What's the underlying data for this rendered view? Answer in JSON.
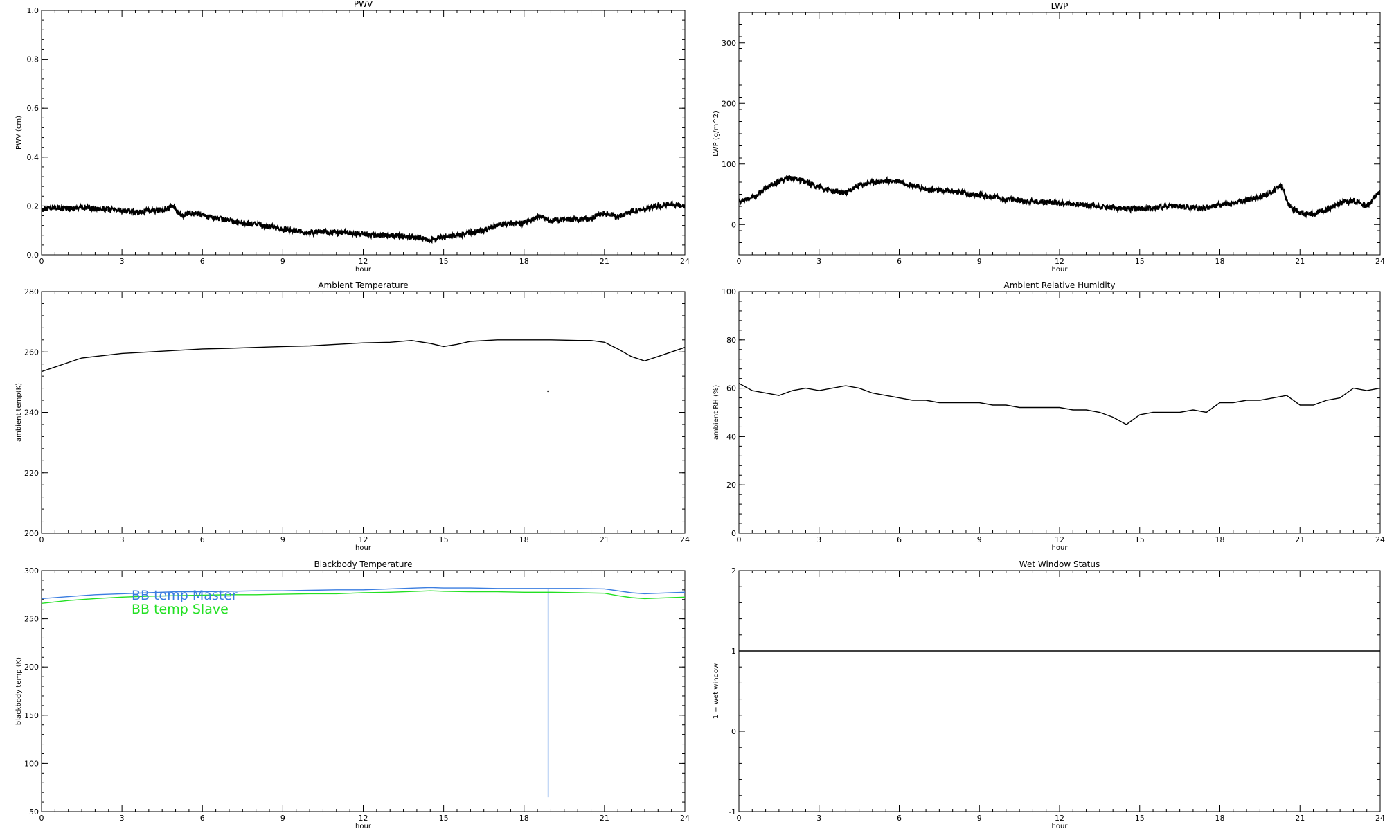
{
  "chart_data": [
    {
      "id": "pwv",
      "type": "scatter",
      "title": "PWV",
      "xlabel": "hour",
      "ylabel": "PWV (cm)",
      "xlim": [
        0,
        24
      ],
      "ylim": [
        0,
        1.0
      ],
      "xticks": [
        0,
        3,
        6,
        9,
        12,
        15,
        18,
        21,
        24
      ],
      "yticks": [
        0.0,
        0.2,
        0.4,
        0.6,
        0.8,
        1.0
      ],
      "ytick_labels": [
        "0.0",
        "0.2",
        "0.4",
        "0.6",
        "0.8",
        "1.0"
      ],
      "series": [
        {
          "color": "#000000",
          "style": "dots",
          "x": [
            0,
            0.5,
            1,
            1.5,
            2,
            2.5,
            3,
            3.5,
            4,
            4.5,
            4.9,
            5.2,
            5.5,
            6,
            6.5,
            7,
            7.5,
            8,
            8.5,
            9,
            9.5,
            10,
            10.5,
            11,
            11.5,
            12,
            12.5,
            13,
            13.5,
            14,
            14.5,
            15,
            15.5,
            16,
            16.5,
            17,
            17.5,
            18,
            18.5,
            19,
            19.5,
            20,
            20.5,
            21,
            21.5,
            22,
            22.5,
            23,
            23.5,
            24
          ],
          "y": [
            0.185,
            0.195,
            0.19,
            0.195,
            0.19,
            0.185,
            0.18,
            0.175,
            0.18,
            0.185,
            0.2,
            0.16,
            0.17,
            0.165,
            0.15,
            0.14,
            0.13,
            0.125,
            0.115,
            0.105,
            0.1,
            0.09,
            0.095,
            0.09,
            0.09,
            0.085,
            0.08,
            0.08,
            0.075,
            0.07,
            0.06,
            0.075,
            0.08,
            0.09,
            0.1,
            0.12,
            0.13,
            0.13,
            0.155,
            0.14,
            0.145,
            0.145,
            0.15,
            0.17,
            0.155,
            0.18,
            0.185,
            0.2,
            0.21,
            0.195
          ]
        }
      ]
    },
    {
      "id": "lwp",
      "type": "scatter",
      "title": "LWP",
      "xlabel": "hour",
      "ylabel": "LWP (g/m^2)",
      "xlim": [
        0,
        24
      ],
      "ylim": [
        -50,
        350
      ],
      "xticks": [
        0,
        3,
        6,
        9,
        12,
        15,
        18,
        21,
        24
      ],
      "yticks": [
        0,
        100,
        200,
        300
      ],
      "ytick_labels": [
        "0",
        "100",
        "200",
        "300"
      ],
      "series": [
        {
          "color": "#000000",
          "style": "dots",
          "x": [
            0,
            0.5,
            1,
            1.5,
            2,
            2.5,
            3,
            3.5,
            4,
            4.5,
            5,
            5.5,
            6,
            6.5,
            7,
            7.5,
            8,
            8.5,
            9,
            9.5,
            10,
            10.5,
            11,
            11.5,
            12,
            12.5,
            13,
            13.5,
            14,
            14.5,
            15,
            15.5,
            16,
            16.5,
            17,
            17.5,
            18,
            18.5,
            19,
            19.5,
            20,
            20.3,
            20.6,
            21,
            21.5,
            22,
            22.5,
            23,
            23.5,
            24
          ],
          "y": [
            38,
            45,
            60,
            72,
            78,
            70,
            62,
            55,
            52,
            65,
            70,
            72,
            72,
            65,
            58,
            56,
            55,
            52,
            48,
            45,
            42,
            40,
            38,
            37,
            36,
            34,
            32,
            30,
            28,
            26,
            26,
            28,
            30,
            30,
            28,
            28,
            32,
            35,
            40,
            45,
            55,
            65,
            30,
            20,
            18,
            25,
            35,
            40,
            30,
            55
          ]
        }
      ]
    },
    {
      "id": "ambient-temperature",
      "type": "line",
      "title": "Ambient Temperature",
      "xlabel": "hour",
      "ylabel": "ambient temp(K)",
      "xlim": [
        0,
        24
      ],
      "ylim": [
        200,
        280
      ],
      "xticks": [
        0,
        3,
        6,
        9,
        12,
        15,
        18,
        21,
        24
      ],
      "yticks": [
        200,
        220,
        240,
        260,
        280
      ],
      "ytick_labels": [
        "200",
        "220",
        "240",
        "260",
        "280"
      ],
      "series": [
        {
          "color": "#000000",
          "style": "line",
          "x": [
            0,
            0.5,
            1,
            1.5,
            2,
            3,
            4,
            5,
            6,
            7,
            8,
            9,
            10,
            11,
            12,
            13,
            13.8,
            14.5,
            15,
            15.5,
            16,
            17,
            18,
            19,
            20,
            20.5,
            21,
            21.5,
            22,
            22.5,
            23,
            23.5,
            24
          ],
          "y": [
            253.5,
            255,
            256.5,
            258,
            258.5,
            259.5,
            260,
            260.5,
            261,
            261.2,
            261.5,
            261.8,
            262,
            262.5,
            263,
            263.2,
            263.8,
            262.8,
            261.8,
            262.5,
            263.5,
            264,
            264,
            264,
            263.8,
            263.8,
            263.2,
            261,
            258.5,
            257,
            258.5,
            260,
            261.5
          ]
        },
        {
          "color": "#000000",
          "style": "dots",
          "x": [
            18.9
          ],
          "y": [
            247
          ]
        }
      ]
    },
    {
      "id": "ambient-relative-humidity",
      "type": "line",
      "title": "Ambient Relative Humidity",
      "xlabel": "hour",
      "ylabel": "ambient RH (%)",
      "xlim": [
        0,
        24
      ],
      "ylim": [
        0,
        100
      ],
      "xticks": [
        0,
        3,
        6,
        9,
        12,
        15,
        18,
        21,
        24
      ],
      "yticks": [
        0,
        20,
        40,
        60,
        80,
        100
      ],
      "ytick_labels": [
        "0",
        "20",
        "40",
        "60",
        "80",
        "100"
      ],
      "series": [
        {
          "color": "#000000",
          "style": "line",
          "x": [
            0,
            0.5,
            1,
            1.5,
            2,
            2.5,
            3,
            3.5,
            4,
            4.5,
            5,
            5.5,
            6,
            6.5,
            7,
            7.5,
            8,
            8.5,
            9,
            9.5,
            10,
            10.5,
            11,
            11.5,
            12,
            12.5,
            13,
            13.5,
            14,
            14.5,
            15,
            15.5,
            16,
            16.5,
            17,
            17.5,
            18,
            18.5,
            19,
            19.5,
            20,
            20.5,
            21,
            21.5,
            22,
            22.5,
            23,
            23.5,
            24
          ],
          "y": [
            62,
            59,
            58,
            57,
            59,
            60,
            59,
            60,
            61,
            60,
            58,
            57,
            56,
            55,
            55,
            54,
            54,
            54,
            54,
            53,
            53,
            52,
            52,
            52,
            52,
            51,
            51,
            50,
            48,
            45,
            49,
            50,
            50,
            50,
            51,
            50,
            54,
            54,
            55,
            55,
            56,
            57,
            53,
            53,
            55,
            56,
            60,
            59,
            60
          ]
        }
      ]
    },
    {
      "id": "blackbody-temperature",
      "type": "line",
      "title": "Blackbody Temperature",
      "xlabel": "hour",
      "ylabel": "blackbody temp (K)",
      "xlim": [
        0,
        24
      ],
      "ylim": [
        50,
        300
      ],
      "xticks": [
        0,
        3,
        6,
        9,
        12,
        15,
        18,
        21,
        24
      ],
      "yticks": [
        50,
        100,
        150,
        200,
        250,
        300
      ],
      "ytick_labels": [
        "50",
        "100",
        "150",
        "200",
        "250",
        "300"
      ],
      "legend": {
        "placement": "top-left",
        "entries": [
          "BB temp Master",
          "BB temp Slave"
        ]
      },
      "series": [
        {
          "name": "BB temp Master",
          "color": "#3a7de0",
          "style": "line",
          "x": [
            0,
            1,
            2,
            3,
            4,
            5,
            6,
            7,
            8,
            9,
            10,
            11,
            12,
            13,
            14,
            14.5,
            15,
            16,
            17,
            18,
            18.9,
            18.9,
            18.9,
            19,
            20,
            21,
            21.5,
            22,
            22.5,
            23,
            23.5,
            24
          ],
          "y": [
            271,
            273,
            275,
            276,
            277,
            278,
            278,
            278.5,
            279,
            279,
            279.5,
            280,
            280,
            281,
            282,
            282.5,
            282,
            282,
            281.5,
            281.5,
            281.5,
            65,
            281.5,
            281.5,
            281.5,
            281,
            279,
            277,
            276,
            276.5,
            277,
            277.5
          ]
        },
        {
          "name": "BB temp Slave",
          "color": "#22e022",
          "style": "line",
          "x": [
            0,
            1,
            2,
            3,
            4,
            5,
            6,
            7,
            8,
            9,
            10,
            11,
            12,
            13,
            14,
            14.5,
            15,
            16,
            17,
            18,
            19,
            20,
            21,
            21.5,
            22,
            22.5,
            23,
            23.5,
            24
          ],
          "y": [
            266,
            269,
            271,
            272.5,
            273.5,
            274,
            274.5,
            275,
            275,
            275.5,
            276,
            276,
            277,
            277.5,
            278.5,
            279,
            278.5,
            278,
            278,
            277.5,
            277.5,
            277,
            276.5,
            274,
            272,
            271,
            271.5,
            272,
            272.5
          ]
        }
      ]
    },
    {
      "id": "wet-window-status",
      "type": "line",
      "title": "Wet Window Status",
      "xlabel": "hour",
      "ylabel": "1 = wet window",
      "xlim": [
        0,
        24
      ],
      "ylim": [
        -1,
        2
      ],
      "xticks": [
        0,
        3,
        6,
        9,
        12,
        15,
        18,
        21,
        24
      ],
      "yticks": [
        -1,
        0,
        1,
        2
      ],
      "ytick_labels": [
        "-1",
        "0",
        "1",
        "2"
      ],
      "series": [
        {
          "color": "#000000",
          "style": "line",
          "x": [
            0,
            24
          ],
          "y": [
            1,
            1
          ]
        }
      ]
    }
  ]
}
